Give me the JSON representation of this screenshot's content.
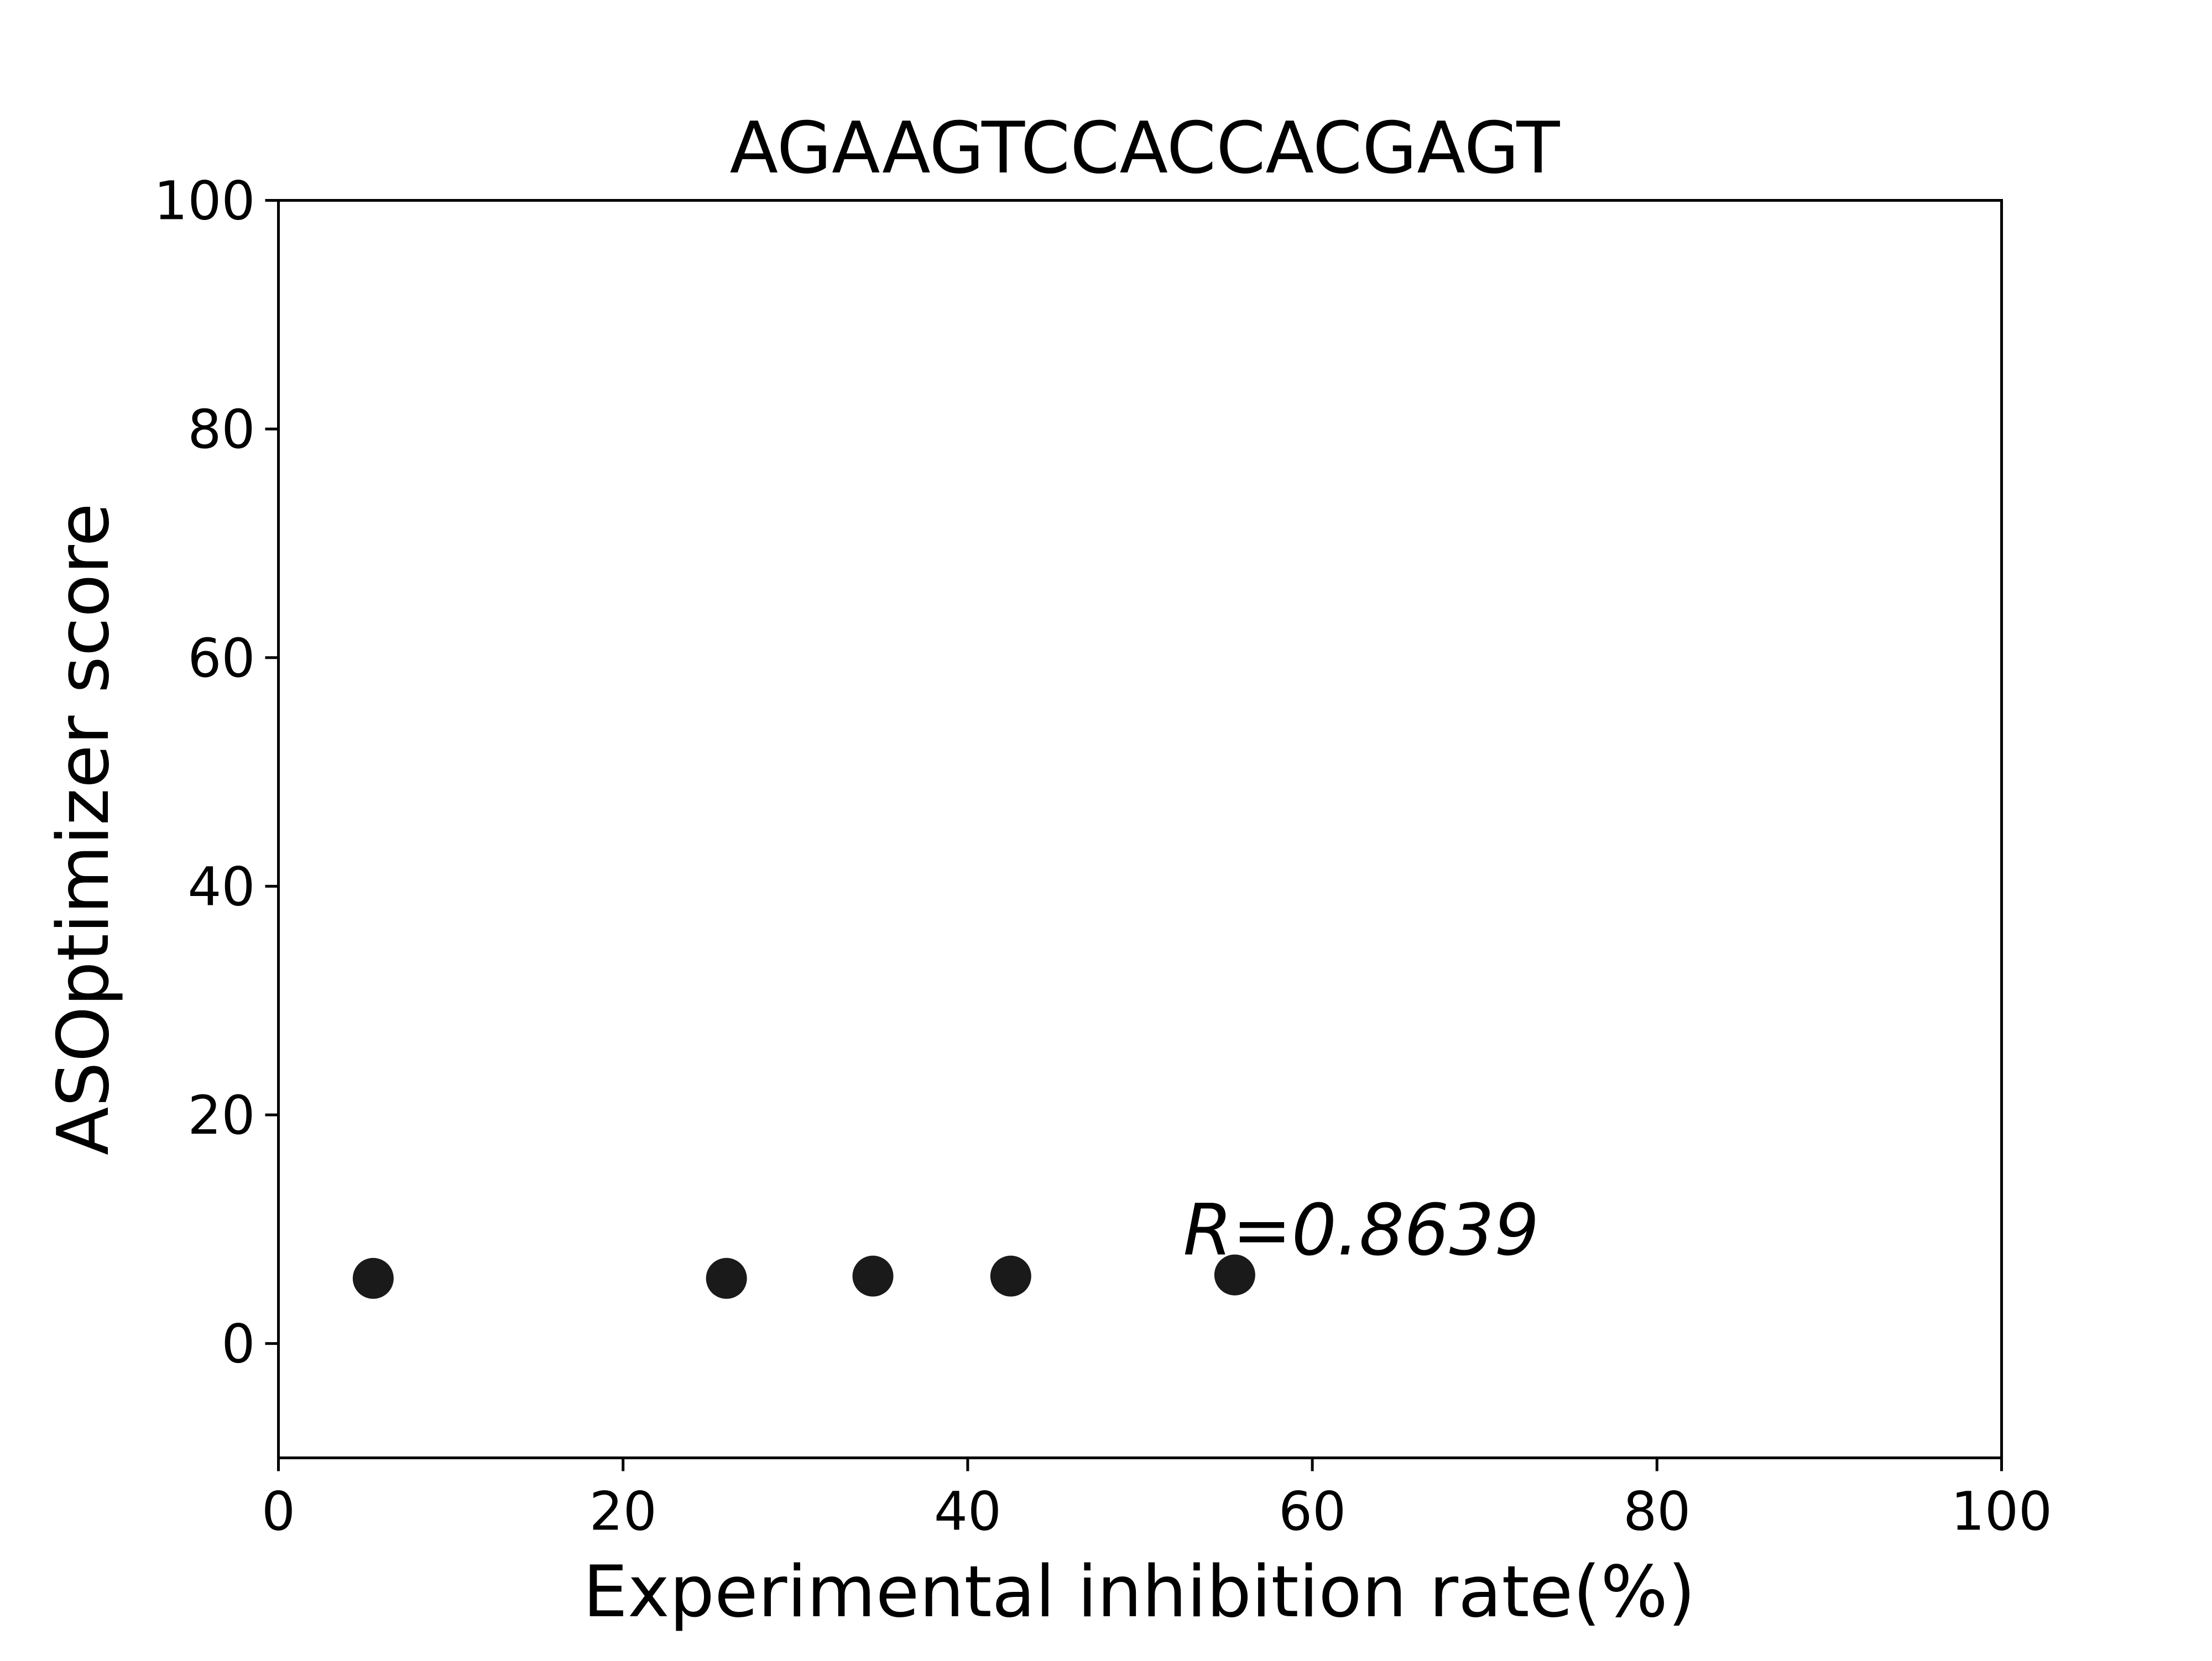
{
  "chart_data": {
    "type": "scatter",
    "title": "AGAAGTCCACCACGAGT",
    "xlabel": "Experimental inhibition rate(%)",
    "ylabel": "ASOptimizer score",
    "xlim": [
      0,
      100
    ],
    "ylim": [
      -10,
      100
    ],
    "x_ticks": [
      0,
      20,
      40,
      60,
      80,
      100
    ],
    "y_ticks": [
      0,
      20,
      40,
      60,
      80,
      100
    ],
    "grid": false,
    "legend": "none",
    "marker_color": "#1a1a1a",
    "points": [
      {
        "x": 5.5,
        "y": 5.7
      },
      {
        "x": 26.0,
        "y": 5.7
      },
      {
        "x": 34.5,
        "y": 5.9
      },
      {
        "x": 42.5,
        "y": 5.9
      },
      {
        "x": 55.5,
        "y": 6.0
      }
    ],
    "annotation": {
      "text": "R=0.8639",
      "x": 52.5,
      "y": 7.8
    }
  }
}
